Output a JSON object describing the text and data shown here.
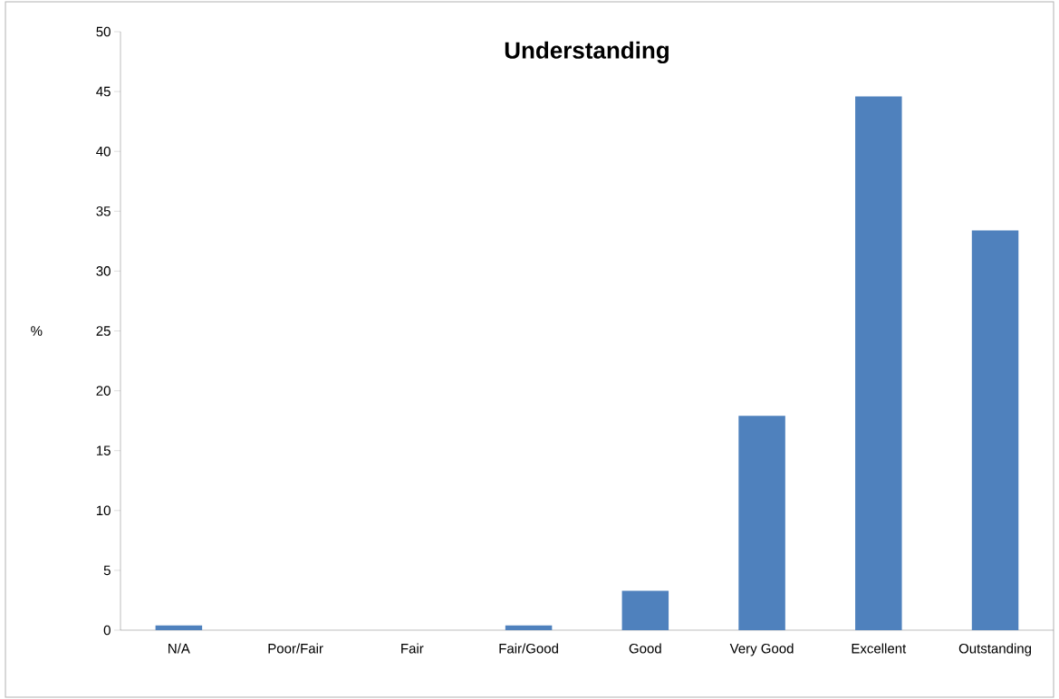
{
  "chart_data": {
    "type": "bar",
    "title": "Understanding",
    "ylabel": "%",
    "categories": [
      "N/A",
      "Poor/Fair",
      "Fair",
      "Fair/Good",
      "Good",
      "Very Good",
      "Excellent",
      "Outstanding"
    ],
    "values": [
      0.4,
      0,
      0,
      0.4,
      3.3,
      17.9,
      44.6,
      33.4
    ],
    "color": "#4f81bd",
    "ylim": [
      0,
      50
    ],
    "yticks": [
      0,
      5,
      10,
      15,
      20,
      25,
      30,
      35,
      40,
      45,
      50
    ],
    "grid": false
  }
}
